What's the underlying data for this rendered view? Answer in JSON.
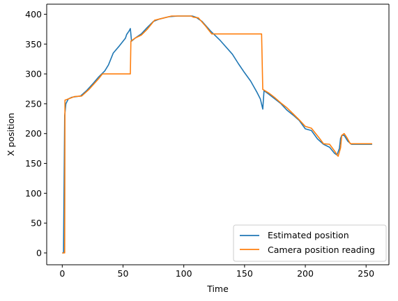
{
  "chart_data": {
    "type": "line",
    "title": "",
    "xlabel": "Time",
    "ylabel": "X position",
    "xlim": [
      -12.8,
      268.8
    ],
    "ylim": [
      -19.85,
      416.85
    ],
    "xticks": [
      0,
      50,
      100,
      150,
      200,
      250
    ],
    "yticks": [
      0,
      50,
      100,
      150,
      200,
      250,
      300,
      350,
      400
    ],
    "grid": false,
    "legend_placement": "lower right",
    "series": [
      {
        "name": "Estimated position",
        "color": "#1f77b4",
        "points": [
          [
            0,
            0
          ],
          [
            1,
            0
          ],
          [
            2,
            230
          ],
          [
            3,
            250
          ],
          [
            5,
            258
          ],
          [
            8,
            261
          ],
          [
            15,
            263
          ],
          [
            20,
            272
          ],
          [
            25,
            283
          ],
          [
            30,
            295
          ],
          [
            35,
            305
          ],
          [
            38,
            315
          ],
          [
            42,
            335
          ],
          [
            47,
            347
          ],
          [
            52,
            360
          ],
          [
            53,
            366
          ],
          [
            55,
            372
          ],
          [
            56,
            376
          ],
          [
            57,
            355
          ],
          [
            60,
            360
          ],
          [
            65,
            367
          ],
          [
            70,
            378
          ],
          [
            75,
            388
          ],
          [
            80,
            392
          ],
          [
            88,
            396
          ],
          [
            95,
            397
          ],
          [
            100,
            397
          ],
          [
            107,
            397
          ],
          [
            110,
            395
          ],
          [
            115,
            388
          ],
          [
            122,
            372
          ],
          [
            130,
            356
          ],
          [
            140,
            333
          ],
          [
            145,
            317
          ],
          [
            150,
            302
          ],
          [
            155,
            288
          ],
          [
            160,
            270
          ],
          [
            163,
            258
          ],
          [
            165,
            241
          ],
          [
            166,
            272
          ],
          [
            170,
            266
          ],
          [
            175,
            258
          ],
          [
            180,
            250
          ],
          [
            185,
            239
          ],
          [
            190,
            231
          ],
          [
            195,
            222
          ],
          [
            200,
            208
          ],
          [
            205,
            205
          ],
          [
            210,
            191
          ],
          [
            215,
            182
          ],
          [
            220,
            177
          ],
          [
            224,
            167
          ],
          [
            226,
            164
          ],
          [
            228,
            175
          ],
          [
            229,
            192
          ],
          [
            230,
            197
          ],
          [
            232,
            197
          ],
          [
            235,
            187
          ],
          [
            238,
            182
          ],
          [
            245,
            182
          ],
          [
            255,
            182
          ]
        ]
      },
      {
        "name": "Camera position reading",
        "color": "#ff7f0e",
        "points": [
          [
            0,
            0
          ],
          [
            2,
            0
          ],
          [
            2.2,
            256
          ],
          [
            5,
            258
          ],
          [
            10,
            262
          ],
          [
            16,
            263
          ],
          [
            22,
            274
          ],
          [
            30,
            292
          ],
          [
            33,
            300
          ],
          [
            56,
            300
          ],
          [
            56.5,
            355
          ],
          [
            60,
            360
          ],
          [
            65,
            365
          ],
          [
            70,
            375
          ],
          [
            76,
            390
          ],
          [
            80,
            392
          ],
          [
            90,
            397
          ],
          [
            100,
            397
          ],
          [
            106,
            397
          ],
          [
            108,
            395
          ],
          [
            112,
            394
          ],
          [
            118,
            380
          ],
          [
            123,
            367
          ],
          [
            164,
            367
          ],
          [
            165,
            274
          ],
          [
            170,
            268
          ],
          [
            175,
            260
          ],
          [
            180,
            251
          ],
          [
            185,
            243
          ],
          [
            190,
            233
          ],
          [
            195,
            223
          ],
          [
            200,
            212
          ],
          [
            205,
            209
          ],
          [
            212,
            191
          ],
          [
            215,
            183
          ],
          [
            220,
            182
          ],
          [
            224,
            171
          ],
          [
            227,
            162
          ],
          [
            229,
            176
          ],
          [
            230,
            197
          ],
          [
            232,
            200
          ],
          [
            234,
            194
          ],
          [
            237,
            183
          ],
          [
            245,
            183
          ],
          [
            255,
            183
          ]
        ]
      }
    ]
  }
}
